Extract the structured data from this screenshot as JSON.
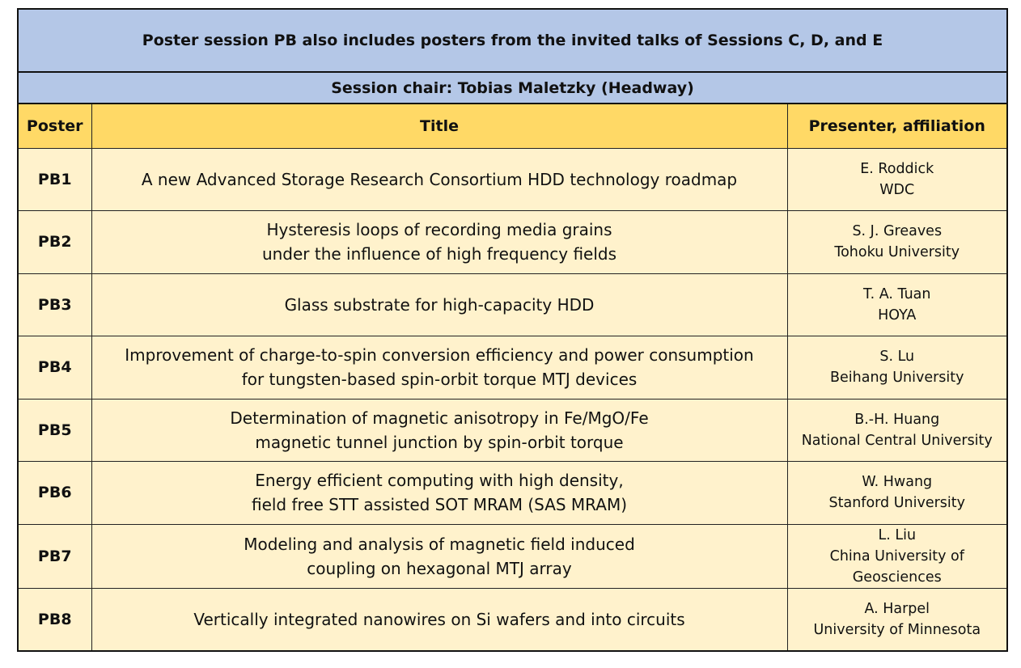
{
  "banner": "Poster session PB also includes posters from the invited talks of Sessions C, D, and E",
  "chair": "Session chair: Tobias Maletzky (Headway)",
  "headers": {
    "poster": "Poster",
    "title": "Title",
    "presenter": "Presenter, affiliation"
  },
  "rows": [
    {
      "id": "PB1",
      "title": [
        "A new Advanced Storage Research Consortium HDD technology roadmap"
      ],
      "presenter": [
        "E. Roddick",
        "WDC"
      ]
    },
    {
      "id": "PB2",
      "title": [
        "Hysteresis loops of recording media grains",
        "under the influence of high frequency fields"
      ],
      "presenter": [
        "S. J. Greaves",
        "Tohoku University"
      ]
    },
    {
      "id": "PB3",
      "title": [
        "Glass substrate for high-capacity HDD"
      ],
      "presenter": [
        "T. A. Tuan",
        "HOYA"
      ]
    },
    {
      "id": "PB4",
      "title": [
        "Improvement of charge-to-spin conversion efficiency and power consumption",
        "for tungsten-based spin-orbit torque MTJ devices"
      ],
      "presenter": [
        "S. Lu",
        "Beihang University"
      ]
    },
    {
      "id": "PB5",
      "title": [
        "Determination of magnetic anisotropy in Fe/MgO/Fe",
        "magnetic tunnel junction by spin-orbit torque"
      ],
      "presenter": [
        "B.-H. Huang",
        "National Central University"
      ]
    },
    {
      "id": "PB6",
      "title": [
        "Energy efficient computing with high density,",
        "field free STT assisted SOT MRAM (SAS MRAM)"
      ],
      "presenter": [
        "W. Hwang",
        "Stanford University"
      ]
    },
    {
      "id": "PB7",
      "title": [
        "Modeling and analysis of magnetic field induced",
        "coupling on hexagonal MTJ array"
      ],
      "presenter": [
        "L. Liu",
        "China University of",
        "Geosciences"
      ]
    },
    {
      "id": "PB8",
      "title": [
        "Vertically integrated nanowires on Si wafers and into circuits"
      ],
      "presenter": [
        "A. Harpel",
        "University of Minnesota"
      ]
    }
  ]
}
